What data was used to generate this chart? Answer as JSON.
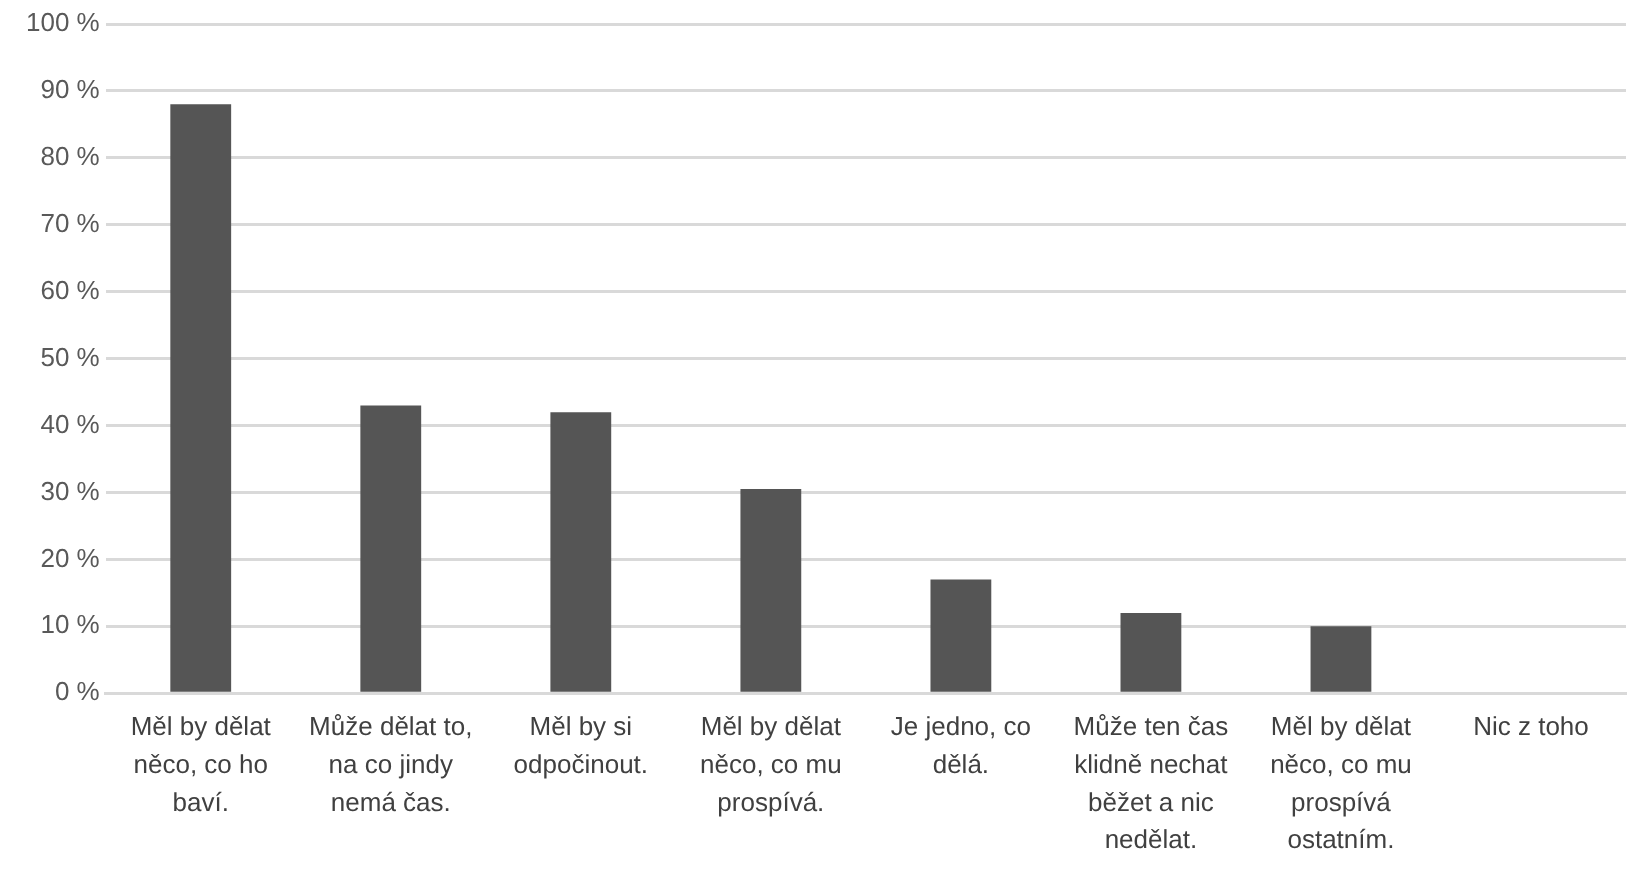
{
  "chart_data": {
    "type": "bar",
    "categories": [
      "Měl by dělat něco, co ho baví.",
      "Může dělat to, na co jindy nemá čas.",
      "Měl by si odpočinout.",
      "Měl by dělat něco, co mu prospívá.",
      "Je jedno, co dělá.",
      "Může ten čas klidně nechat běžet a nic nedělat.",
      "Měl by dělat něco, co mu prospívá ostatním.",
      "Nic z toho"
    ],
    "values": [
      88,
      43,
      42,
      30.5,
      17,
      12,
      10,
      0
    ],
    "color": "#555555",
    "ylim": [
      0,
      100
    ],
    "yticks": [
      {
        "value": 0,
        "label": "0 %"
      },
      {
        "value": 10,
        "label": "10 %"
      },
      {
        "value": 20,
        "label": "20 %"
      },
      {
        "value": 30,
        "label": "30 %"
      },
      {
        "value": 40,
        "label": "40 %"
      },
      {
        "value": 50,
        "label": "50 %"
      },
      {
        "value": 60,
        "label": "60 %"
      },
      {
        "value": 70,
        "label": "70 %"
      },
      {
        "value": 80,
        "label": "80 %"
      },
      {
        "value": 90,
        "label": "90 %"
      },
      {
        "value": 100,
        "label": "100 %"
      }
    ],
    "grid": "y"
  }
}
